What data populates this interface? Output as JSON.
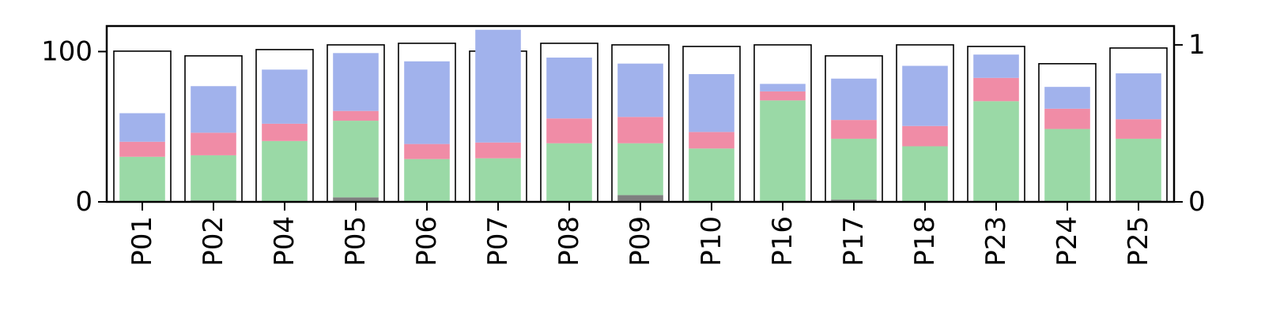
{
  "chart_data": {
    "type": "bar",
    "categories": [
      "P01",
      "P02",
      "P04",
      "P05",
      "P06",
      "P07",
      "P08",
      "P09",
      "P10",
      "P16",
      "P17",
      "P18",
      "P23",
      "P24",
      "P25"
    ],
    "left_axis": {
      "ylim": [
        0,
        117
      ],
      "ticks": [
        0,
        100
      ],
      "tick_labels": [
        "0",
        "100"
      ]
    },
    "right_axis": {
      "ylim": [
        0,
        1.12
      ],
      "ticks": [
        0,
        1
      ],
      "tick_labels": [
        "0",
        "1"
      ]
    },
    "totals_right_axis": [
      0.96,
      0.93,
      0.97,
      1.0,
      1.01,
      0.96,
      1.01,
      1.0,
      0.99,
      1.0,
      0.93,
      1.0,
      0.99,
      0.88,
      0.98
    ],
    "series": [
      {
        "color": "#7f7f7f",
        "values": [
          0.5,
          1,
          0.5,
          3,
          0.5,
          0.5,
          0.5,
          4.5,
          0.5,
          0.5,
          1.5,
          0.5,
          0.5,
          0.5,
          1
        ]
      },
      {
        "color": "#9ad9a6",
        "values": [
          29.5,
          30,
          40,
          51,
          28,
          28.5,
          38.5,
          34.5,
          35,
          67,
          40.5,
          36.5,
          66.5,
          48,
          41
        ]
      },
      {
        "color": "#f08ca6",
        "values": [
          10,
          15,
          11.5,
          6.5,
          10,
          10.5,
          16.5,
          17.5,
          11,
          6,
          12.5,
          13.5,
          15.5,
          13.5,
          13
        ]
      },
      {
        "color": "#a1b2ec",
        "values": [
          19,
          31,
          36,
          38.5,
          55,
          75,
          40.5,
          35.5,
          38.5,
          5,
          27.5,
          40,
          15.5,
          14.5,
          30.5
        ]
      }
    ]
  }
}
